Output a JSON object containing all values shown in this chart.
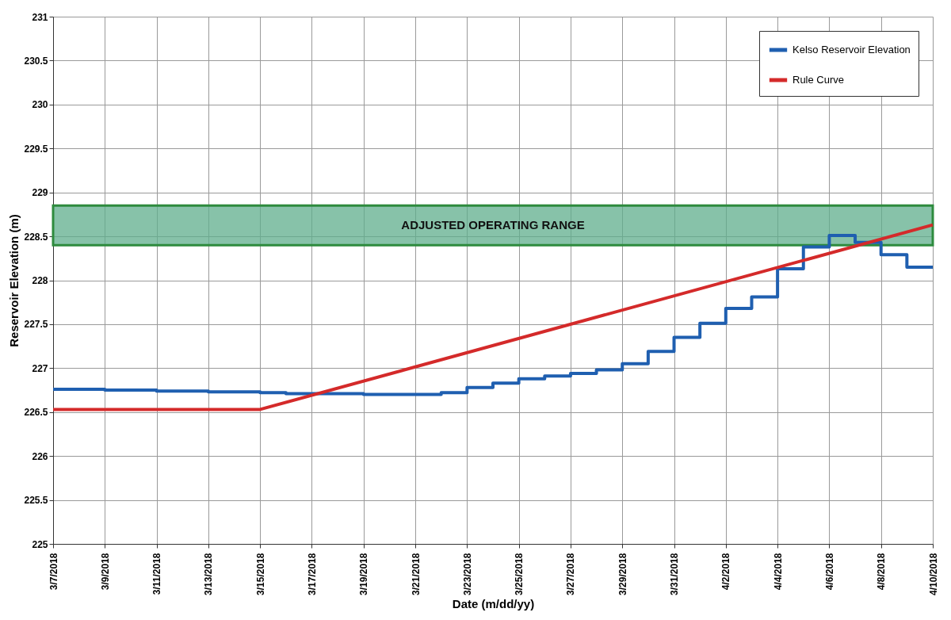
{
  "chart_data": {
    "type": "line",
    "xlabel": "Date (m/dd/yy)",
    "ylabel": "Reservoir Elevation (m)",
    "xlim": [
      "2018-03-07",
      "2018-04-10"
    ],
    "xticks": [
      {
        "value": "2018-03-07",
        "label": "3/7/2018"
      },
      {
        "value": "2018-03-09",
        "label": "3/9/2018"
      },
      {
        "value": "2018-03-11",
        "label": "3/11/2018"
      },
      {
        "value": "2018-03-13",
        "label": "3/13/2018"
      },
      {
        "value": "2018-03-15",
        "label": "3/15/2018"
      },
      {
        "value": "2018-03-17",
        "label": "3/17/2018"
      },
      {
        "value": "2018-03-19",
        "label": "3/19/2018"
      },
      {
        "value": "2018-03-21",
        "label": "3/21/2018"
      },
      {
        "value": "2018-03-23",
        "label": "3/23/2018"
      },
      {
        "value": "2018-03-25",
        "label": "3/25/2018"
      },
      {
        "value": "2018-03-27",
        "label": "3/27/2018"
      },
      {
        "value": "2018-03-29",
        "label": "3/29/2018"
      },
      {
        "value": "2018-03-31",
        "label": "3/31/2018"
      },
      {
        "value": "2018-04-02",
        "label": "4/2/2018"
      },
      {
        "value": "2018-04-04",
        "label": "4/4/2018"
      },
      {
        "value": "2018-04-06",
        "label": "4/6/2018"
      },
      {
        "value": "2018-04-08",
        "label": "4/8/2018"
      },
      {
        "value": "2018-04-10",
        "label": "4/10/2018"
      }
    ],
    "ylim": [
      225,
      231
    ],
    "yticks": [
      225,
      225.5,
      226,
      226.5,
      227,
      227.5,
      228,
      228.5,
      229,
      229.5,
      230,
      230.5,
      231
    ],
    "grid": true,
    "legend": "top right",
    "bands": [
      {
        "axis": "y",
        "from": 228.4,
        "to": 228.85,
        "label": "ADJUSTED OPERATING RANGE",
        "color": "#5fae8c"
      }
    ],
    "series": [
      {
        "name": "Kelso Reservoir Elevation",
        "type": "step",
        "color": "#1f5fb0",
        "x": [
          "2018-03-07",
          "2018-03-08",
          "2018-03-09",
          "2018-03-10",
          "2018-03-11",
          "2018-03-12",
          "2018-03-13",
          "2018-03-14",
          "2018-03-15",
          "2018-03-16",
          "2018-03-17",
          "2018-03-18",
          "2018-03-19",
          "2018-03-20",
          "2018-03-21",
          "2018-03-22",
          "2018-03-23",
          "2018-03-24",
          "2018-03-25",
          "2018-03-26",
          "2018-03-27",
          "2018-03-28",
          "2018-03-29",
          "2018-03-30",
          "2018-03-31",
          "2018-04-01",
          "2018-04-02",
          "2018-04-03",
          "2018-04-04",
          "2018-04-05",
          "2018-04-06",
          "2018-04-07",
          "2018-04-08",
          "2018-04-09",
          "2018-04-10"
        ],
        "values": [
          226.76,
          226.76,
          226.75,
          226.75,
          226.74,
          226.74,
          226.73,
          226.73,
          226.72,
          226.71,
          226.71,
          226.71,
          226.7,
          226.7,
          226.7,
          226.72,
          226.78,
          226.83,
          226.88,
          226.91,
          226.94,
          226.98,
          227.05,
          227.19,
          227.35,
          227.51,
          227.68,
          227.81,
          228.13,
          228.38,
          228.51,
          228.43,
          228.29,
          228.15,
          228.15
        ]
      },
      {
        "name": "Rule Curve",
        "type": "line",
        "color": "#d42a2a",
        "x": [
          "2018-03-07",
          "2018-03-15",
          "2018-04-10"
        ],
        "values": [
          226.53,
          226.53,
          228.63
        ]
      }
    ]
  }
}
